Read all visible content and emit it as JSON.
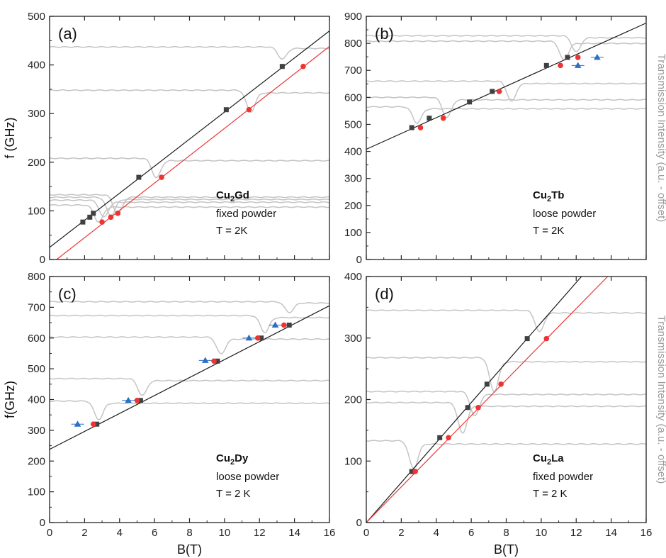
{
  "panels_layout": "2x2",
  "chart_data": [
    {
      "type": "scatter",
      "label": "(a)",
      "xlabel": "",
      "ylabel": "f (GHz)",
      "right_label": "",
      "xlim": [
        0,
        16
      ],
      "ylim": [
        0,
        500
      ],
      "xticks": [
        "0",
        "2",
        "4",
        "6",
        "8",
        "10",
        "12",
        "14",
        "16"
      ],
      "yticks": [
        "0",
        "100",
        "200",
        "300",
        "400",
        "500"
      ],
      "show_xtick_labels": false,
      "annotation": {
        "sample_base": "Cu",
        "sample_sub": "2",
        "sample_elem": "Gd",
        "line2": "fixed powder",
        "line3": "T = 2K"
      },
      "series": [
        {
          "marker": "square",
          "color": "#404040",
          "x": [
            1.9,
            2.3,
            2.5,
            5.1,
            10.1,
            13.3
          ],
          "y": [
            77,
            87,
            95,
            169,
            308,
            397
          ]
        },
        {
          "marker": "circle",
          "color": "#ee3333",
          "x": [
            3.0,
            3.5,
            3.9,
            6.4,
            11.4,
            14.5
          ],
          "y": [
            77,
            87,
            95,
            169,
            308,
            397
          ]
        }
      ],
      "fits": [
        {
          "color": "#1a1a1a",
          "x": [
            0,
            16
          ],
          "y": [
            25,
            470
          ]
        },
        {
          "color": "#ee3333",
          "x": [
            0.4,
            16
          ],
          "y": [
            0,
            438
          ]
        }
      ],
      "traces": [
        {
          "base": 437,
          "dip_x": 13.3,
          "depth": 25
        },
        {
          "base": 348,
          "dip_x": 11.5,
          "depth": 45
        },
        {
          "base": 208,
          "dip_x": 6.1,
          "depth": 40
        },
        {
          "base": 133,
          "dip_x": 3.9,
          "depth": 40
        },
        {
          "base": 128,
          "dip_x": 3.5,
          "depth": 38
        },
        {
          "base": 122,
          "dip_x": 3.1,
          "depth": 35
        },
        {
          "base": 112,
          "dip_x": 2.8,
          "depth": 35
        }
      ]
    },
    {
      "type": "scatter",
      "label": "(b)",
      "xlabel": "",
      "ylabel": "",
      "right_label": "Transmission Intensity (a.u. - offset)",
      "xlim": [
        0,
        16
      ],
      "ylim": [
        0,
        900
      ],
      "xticks": [
        "0",
        "2",
        "4",
        "6",
        "8",
        "10",
        "12",
        "14",
        "16"
      ],
      "yticks": [
        "0",
        "100",
        "200",
        "300",
        "400",
        "500",
        "600",
        "700",
        "800",
        "900"
      ],
      "show_xtick_labels": false,
      "annotation": {
        "sample_base": "Cu",
        "sample_sub": "2",
        "sample_elem": "Tb",
        "line2": "loose powder",
        "line3": "T = 2K"
      },
      "series": [
        {
          "marker": "square",
          "color": "#404040",
          "x": [
            2.6,
            3.6,
            5.9,
            7.2,
            10.3,
            11.5
          ],
          "y": [
            488,
            523,
            583,
            622,
            718,
            748
          ]
        },
        {
          "marker": "circle",
          "color": "#ee3333",
          "x": [
            3.1,
            4.4,
            7.6,
            11.1,
            12.1
          ],
          "y": [
            488,
            523,
            622,
            718,
            748
          ]
        },
        {
          "marker": "triangle",
          "color": "#2a6fc4",
          "x": [
            12.1,
            13.2
          ],
          "y": [
            718,
            748
          ]
        }
      ],
      "fits": [
        {
          "color": "#1a1a1a",
          "x": [
            0,
            16
          ],
          "y": [
            408,
            875
          ]
        }
      ],
      "traces": [
        {
          "base": 828,
          "dip_x": 12.0,
          "depth": 60
        },
        {
          "base": 808,
          "dip_x": 11.3,
          "depth": 70
        },
        {
          "base": 660,
          "dip_x": 8.3,
          "depth": 75
        },
        {
          "base": 600,
          "dip_x": 4.6,
          "depth": 75
        },
        {
          "base": 565,
          "dip_x": 2.9,
          "depth": 60
        }
      ]
    },
    {
      "type": "scatter",
      "label": "(c)",
      "xlabel": "B(T)",
      "ylabel": "f(GHz)",
      "right_label": "",
      "xlim": [
        0,
        16
      ],
      "ylim": [
        0,
        800
      ],
      "xticks": [
        "0",
        "2",
        "4",
        "6",
        "8",
        "10",
        "12",
        "14",
        "16"
      ],
      "yticks": [
        "0",
        "100",
        "200",
        "300",
        "400",
        "500",
        "600",
        "700",
        "800"
      ],
      "show_xtick_labels": true,
      "annotation": {
        "sample_base": "Cu",
        "sample_sub": "2",
        "sample_elem": "Dy",
        "line2": "loose powder",
        "line3": "T = 2 K"
      },
      "series": [
        {
          "marker": "square",
          "color": "#404040",
          "x": [
            2.7,
            5.2,
            9.6,
            12.1,
            13.7
          ],
          "y": [
            320,
            397,
            525,
            600,
            642
          ]
        },
        {
          "marker": "circle",
          "color": "#ee3333",
          "x": [
            2.5,
            5.0,
            9.4,
            11.9,
            13.4
          ],
          "y": [
            320,
            397,
            525,
            600,
            642
          ]
        },
        {
          "marker": "triangle",
          "color": "#2a6fc4",
          "x": [
            1.6,
            4.5,
            8.9,
            11.4,
            12.9
          ],
          "y": [
            320,
            397,
            527,
            600,
            642
          ]
        }
      ],
      "fits": [
        {
          "color": "#1a1a1a",
          "x": [
            0,
            16
          ],
          "y": [
            238,
            705
          ]
        }
      ],
      "traces": [
        {
          "base": 718,
          "dip_x": 13.7,
          "depth": 35
        },
        {
          "base": 673,
          "dip_x": 12.3,
          "depth": 55
        },
        {
          "base": 603,
          "dip_x": 9.8,
          "depth": 55
        },
        {
          "base": 468,
          "dip_x": 5.3,
          "depth": 55
        },
        {
          "base": 395,
          "dip_x": 2.8,
          "depth": 60
        }
      ]
    },
    {
      "type": "scatter",
      "label": "(d)",
      "xlabel": "B(T)",
      "ylabel": "",
      "right_label": "Transmission Intensity (a.u. - offset)",
      "xlim": [
        0,
        16
      ],
      "ylim": [
        0,
        400
      ],
      "xticks": [
        "0",
        "2",
        "4",
        "6",
        "8",
        "10",
        "12",
        "14",
        "16"
      ],
      "yticks": [
        "0",
        "100",
        "200",
        "300",
        "400"
      ],
      "show_xtick_labels": true,
      "annotation": {
        "sample_base": "Cu",
        "sample_sub": "2",
        "sample_elem": "La",
        "line2": "fixed powder",
        "line3": "T = 2 K"
      },
      "series": [
        {
          "marker": "square",
          "color": "#404040",
          "x": [
            2.6,
            4.2,
            5.8,
            6.9,
            9.2
          ],
          "y": [
            83,
            138,
            187,
            225,
            299
          ]
        },
        {
          "marker": "circle",
          "color": "#ee3333",
          "x": [
            2.8,
            4.7,
            6.4,
            7.7,
            10.3
          ],
          "y": [
            83,
            138,
            187,
            225,
            299
          ]
        }
      ],
      "fits": [
        {
          "color": "#1a1a1a",
          "x": [
            0,
            12.3
          ],
          "y": [
            0,
            400
          ]
        },
        {
          "color": "#ee3333",
          "x": [
            0,
            13.8
          ],
          "y": [
            0,
            400
          ]
        }
      ],
      "traces": [
        {
          "base": 345,
          "dip_x": 9.9,
          "depth": 35
        },
        {
          "base": 268,
          "dip_x": 7.3,
          "depth": 55
        },
        {
          "base": 213,
          "dip_x": 6.2,
          "depth": 40
        },
        {
          "base": 195,
          "dip_x": 5.5,
          "depth": 50
        },
        {
          "base": 133,
          "dip_x": 2.7,
          "depth": 45
        }
      ]
    }
  ]
}
